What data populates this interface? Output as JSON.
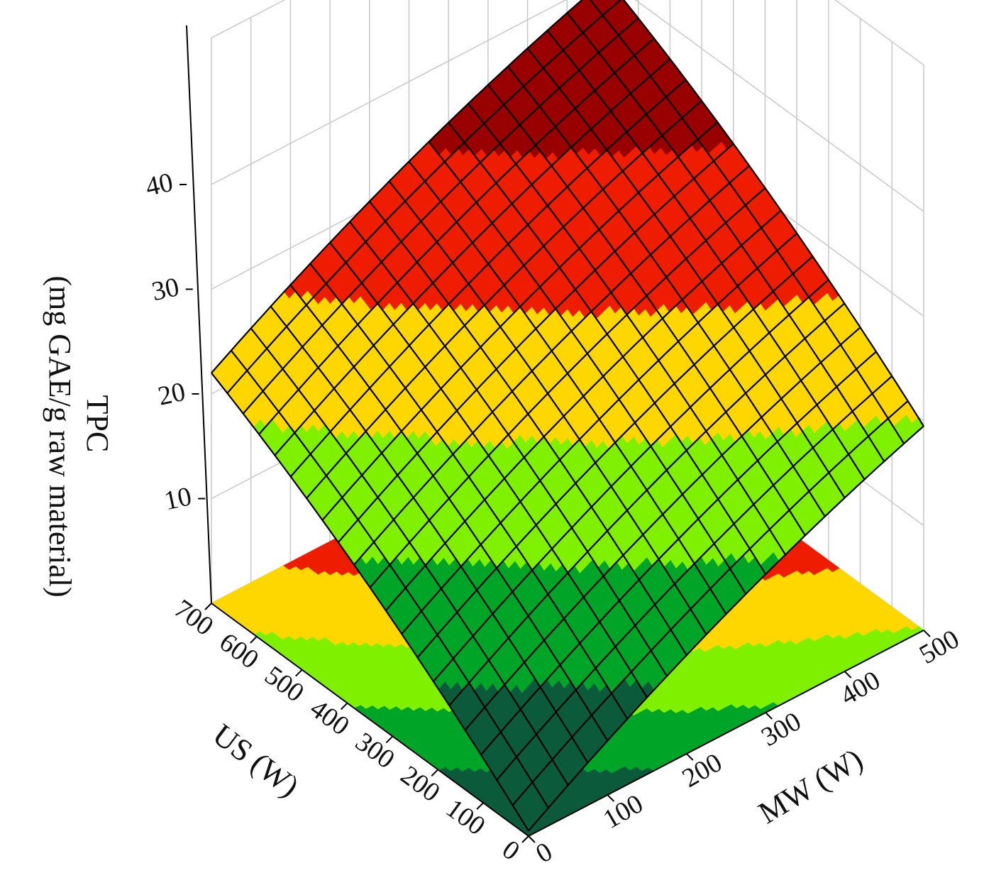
{
  "chart_data": {
    "type": "surface",
    "title": "",
    "x_axis": {
      "label": "MW (W)",
      "range": [
        0,
        500
      ],
      "ticks": [
        "0",
        "100",
        "200",
        "300",
        "400",
        "500"
      ]
    },
    "y_axis": {
      "label": "US (W)",
      "range": [
        0,
        700
      ],
      "ticks": [
        "0",
        "100",
        "200",
        "300",
        "400",
        "500",
        "600",
        "700"
      ]
    },
    "z_axis": {
      "label_line1": "TPC",
      "label_line2": "(mg GAE/g raw material)",
      "range": [
        0,
        40
      ],
      "ticks": [
        "10",
        "20",
        "30",
        "40"
      ]
    },
    "corner_values": [
      {
        "MW": 0,
        "US": 0,
        "TPC": 0.5
      },
      {
        "MW": 500,
        "US": 0,
        "TPC": 19.5
      },
      {
        "MW": 0,
        "US": 700,
        "TPC": 22
      },
      {
        "MW": 500,
        "US": 700,
        "TPC": 40
      }
    ],
    "contour_levels": [
      {
        "max": 8,
        "color": "#0c5a3c"
      },
      {
        "max": 14,
        "color": "#00a527"
      },
      {
        "max": 20,
        "color": "#7ef000"
      },
      {
        "max": 26,
        "color": "#ffd700"
      },
      {
        "max": 33,
        "color": "#ee1c00"
      },
      {
        "max": 99,
        "color": "#990000"
      }
    ],
    "grid": true,
    "projected_contour_on_floor": true
  }
}
